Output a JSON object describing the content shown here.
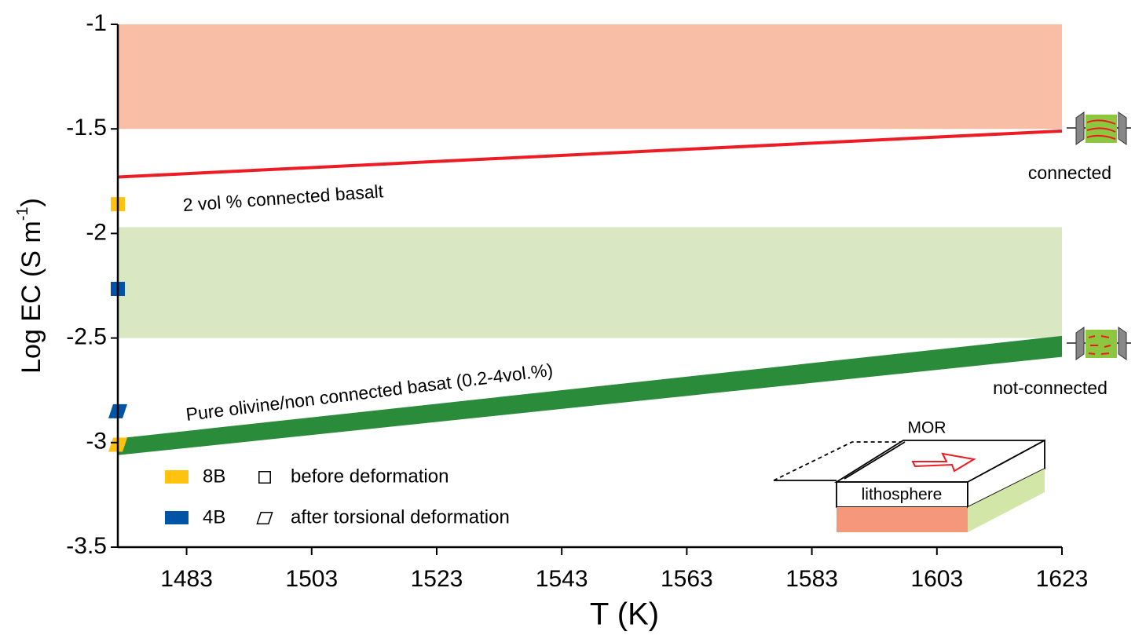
{
  "chart_data": {
    "type": "line",
    "x_label": "T (K)",
    "y_label": {
      "main": "Log EC (S m",
      "sup": "-1",
      "end": ")"
    },
    "xlim": [
      1472,
      1623
    ],
    "xticks": [
      1483,
      1503,
      1523,
      1543,
      1563,
      1583,
      1603,
      1623
    ],
    "ylim": [
      -3.5,
      -1
    ],
    "yticks": [
      -1,
      -1.5,
      -2,
      -2.5,
      -3,
      -3.5
    ],
    "bands": [
      {
        "color": "#f9bfa6",
        "range": [
          -1.5,
          -1
        ]
      },
      {
        "color": "#d9e8c3",
        "range": [
          -2.5,
          -1.97
        ]
      }
    ],
    "lines": [
      {
        "label": "2 vol % connected basalt",
        "color": "#ed1c24",
        "x": [
          1472,
          1623
        ],
        "values": [
          -1.73,
          -1.51
        ]
      }
    ],
    "areas": [
      {
        "label": "Pure olivine/non connected basat (0.2-4vol.%)",
        "color": "#2a8c3a",
        "x": [
          1472,
          1623
        ],
        "upper": [
          -2.98,
          -2.49
        ],
        "lower": [
          -3.06,
          -2.59
        ]
      }
    ],
    "series": [
      {
        "name": "8B",
        "color": "#ffc20e",
        "x": [
          1472,
          1472
        ],
        "values": [
          -1.86,
          -3.01
        ]
      },
      {
        "name": "4B",
        "color": "#0054a6",
        "x": [
          1472,
          1472
        ],
        "values": [
          -2.265,
          -2.85
        ]
      }
    ],
    "shapes": [
      "before deformation",
      "after torsional deformation"
    ],
    "annotations": {
      "connected": "connected",
      "not_connected": "not-connected",
      "mor": "MOR",
      "lithosphere": "lithosphere"
    }
  }
}
